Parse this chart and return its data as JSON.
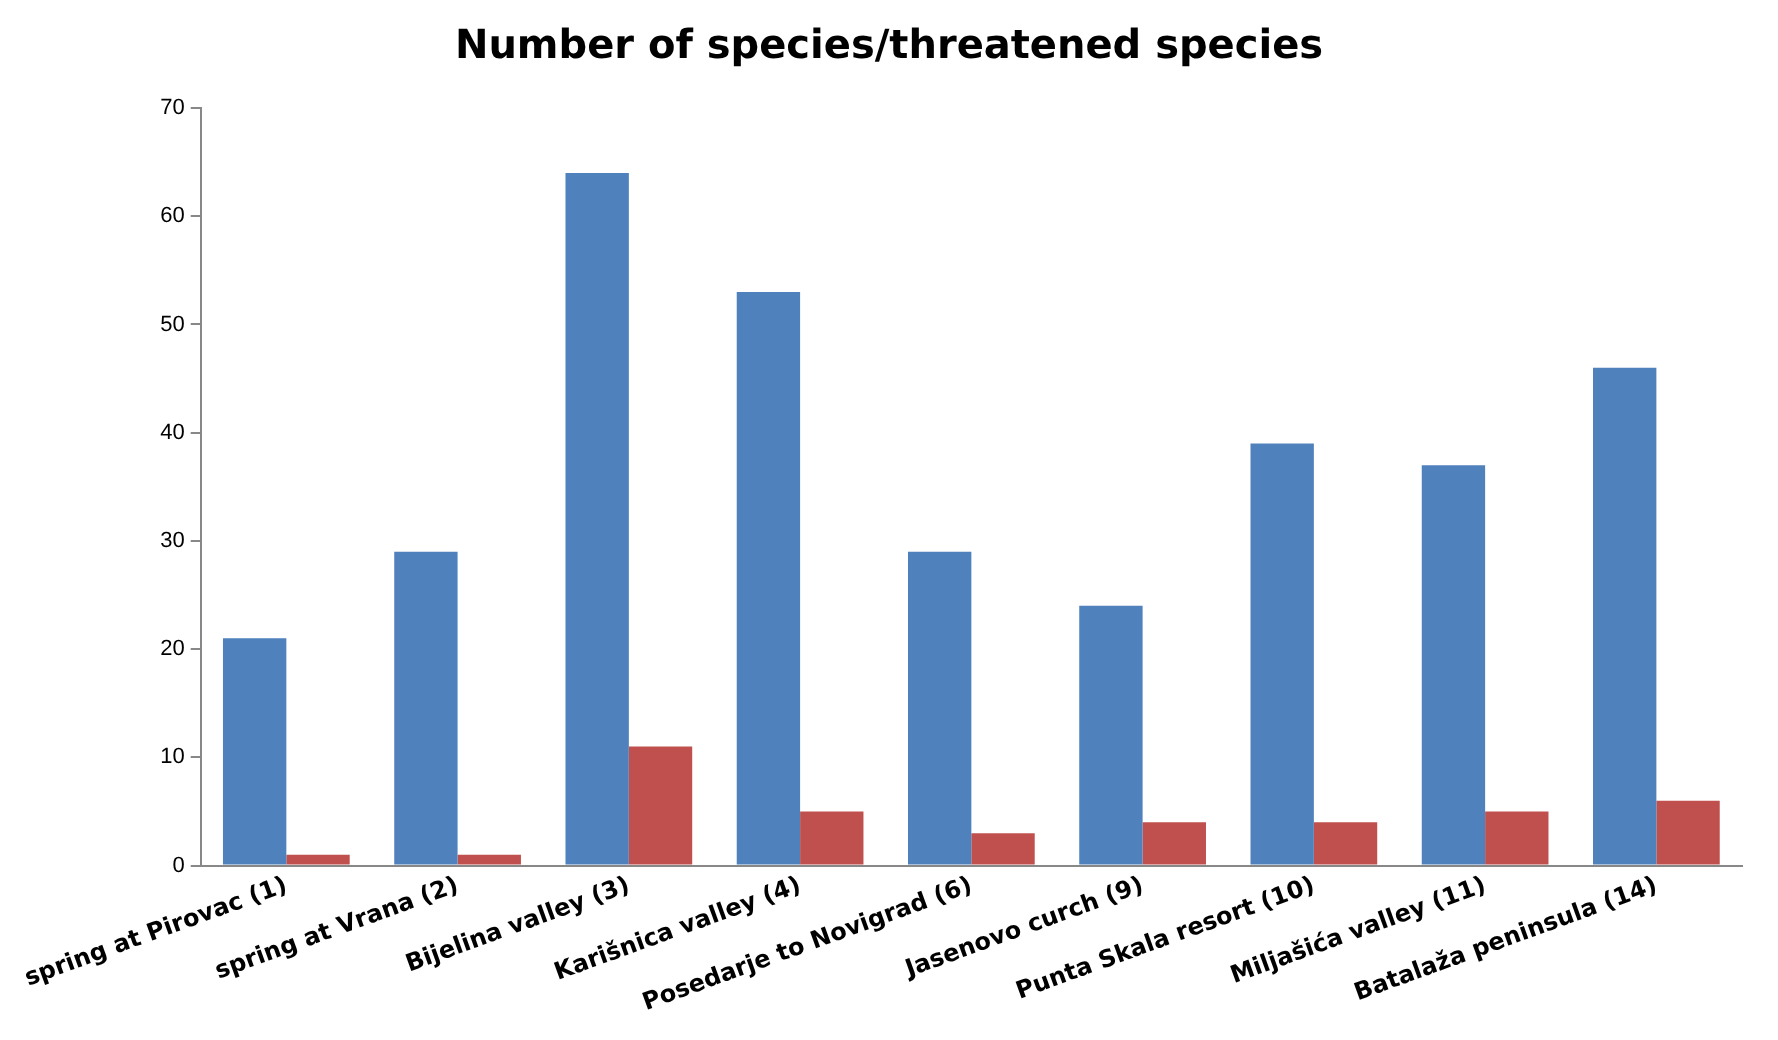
{
  "chart_data": {
    "type": "bar",
    "title": "Number of species/threatened species",
    "categories": [
      "spring at Pirovac (1)",
      "spring at Vrana (2)",
      "Bijelina valley (3)",
      "Karišnica valley (4)",
      "Posedarje to Novigrad (6)",
      "Jasenovo curch (9)",
      "Punta Skala resort (10)",
      "Miljašića valley (11)",
      "Batalaža peninsula (14)"
    ],
    "series": [
      {
        "color": "#4f81bd",
        "values": [
          21,
          29,
          64,
          53,
          29,
          24,
          39,
          37,
          46
        ]
      },
      {
        "color": "#c0504d",
        "values": [
          1,
          1,
          11,
          5,
          3,
          4,
          4,
          5,
          6
        ]
      }
    ],
    "ylim": [
      0,
      70
    ],
    "yticks": [
      0,
      10,
      20,
      30,
      40,
      50,
      60,
      70
    ],
    "grid": false,
    "legend": false
  }
}
